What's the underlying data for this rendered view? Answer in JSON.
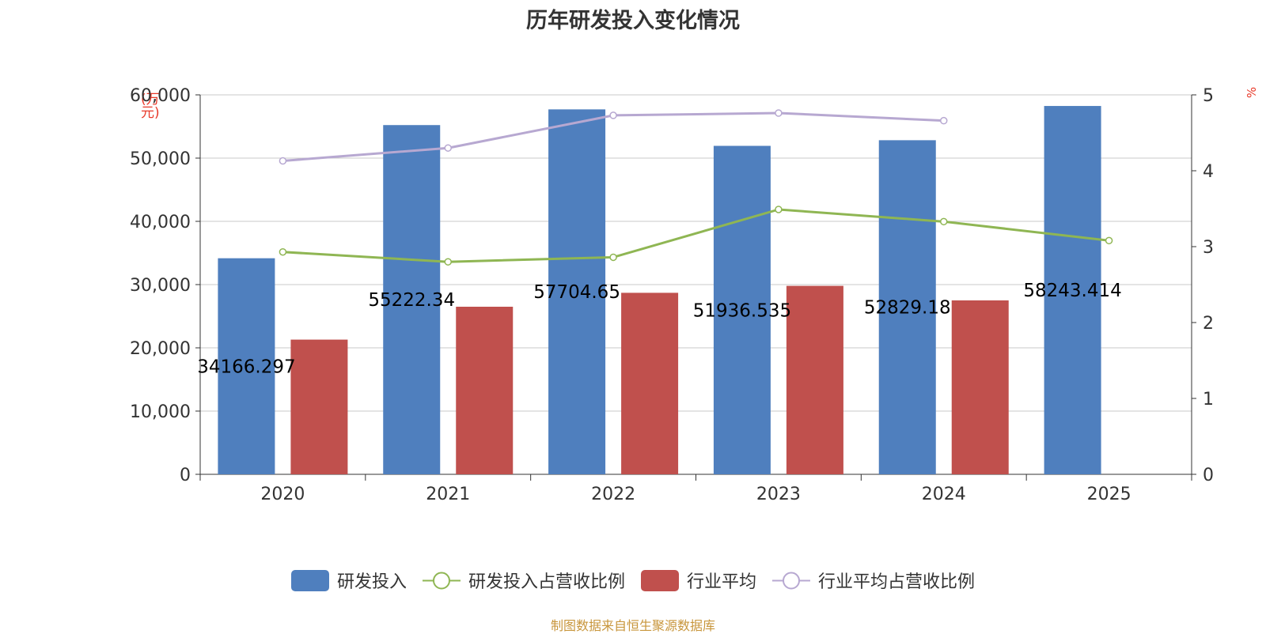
{
  "chart_data": {
    "type": "bar",
    "title": "历年研发投入变化情况",
    "categories": [
      "2020",
      "2021",
      "2022",
      "2023",
      "2024",
      "2025"
    ],
    "y_left": {
      "unit": "(万元)",
      "ylim": [
        0,
        60000
      ],
      "ticks": [
        "0",
        "10,000",
        "20,000",
        "30,000",
        "40,000",
        "50,000",
        "60,000"
      ]
    },
    "y_right": {
      "unit": "%",
      "ylim": [
        0,
        5
      ],
      "ticks": [
        "0",
        "1",
        "2",
        "3",
        "4",
        "5"
      ]
    },
    "series": [
      {
        "name": "研发投入",
        "kind": "bar",
        "axis": "left",
        "color": "#4f7fbe",
        "values": [
          34166.297,
          55222.34,
          57704.65,
          51936.535,
          52829.18,
          58243.414
        ],
        "labels": [
          "34166.297",
          "55222.34",
          "57704.65",
          "51936.535",
          "52829.18",
          "58243.414"
        ]
      },
      {
        "name": "研发投入占营收比例",
        "kind": "line",
        "axis": "right",
        "color": "#8fb653",
        "values": [
          2.93,
          2.8,
          2.86,
          3.49,
          3.33,
          3.08
        ]
      },
      {
        "name": "行业平均",
        "kind": "bar",
        "axis": "left",
        "color": "#c0504d",
        "values": [
          21300,
          26500,
          28700,
          29800,
          27500,
          null
        ]
      },
      {
        "name": "行业平均占营收比例",
        "kind": "line",
        "axis": "right",
        "color": "#b7a8d1",
        "values": [
          4.13,
          4.3,
          4.73,
          4.76,
          4.66,
          null
        ]
      }
    ],
    "grid": true,
    "legend_position": "bottom"
  },
  "source": "制图数据来自恒生聚源数据库"
}
